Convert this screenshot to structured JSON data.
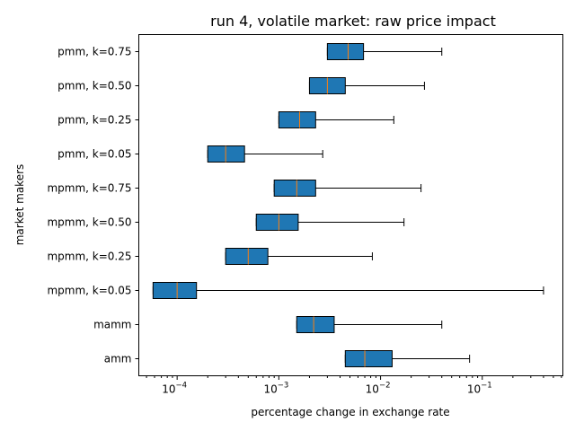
{
  "chart_data": {
    "type": "box",
    "title": "run 4, volatile market: raw price impact",
    "xlabel": "percentage change in exchange rate",
    "ylabel": "market makers",
    "xscale": "log",
    "xlim": [
      4.2e-05,
      0.62
    ],
    "xticks": [
      {
        "value": 0.0001,
        "base": "10",
        "exp": "−4"
      },
      {
        "value": 0.001,
        "base": "10",
        "exp": "−3"
      },
      {
        "value": 0.01,
        "base": "10",
        "exp": "−2"
      },
      {
        "value": 0.1,
        "base": "10",
        "exp": "−1"
      }
    ],
    "grid": false,
    "legend": "none",
    "box_color": "#1f77b4",
    "median_color": "#ff7f0e",
    "series": [
      {
        "name": "pmm, k=0.75",
        "whislo": 0.003,
        "q1": 0.003,
        "median": 0.0048,
        "q3": 0.0068,
        "whishi": 0.04
      },
      {
        "name": "pmm, k=0.50",
        "whislo": 0.002,
        "q1": 0.002,
        "median": 0.003,
        "q3": 0.0045,
        "whishi": 0.027
      },
      {
        "name": "pmm, k=0.25",
        "whislo": 0.001,
        "q1": 0.001,
        "median": 0.0016,
        "q3": 0.0023,
        "whishi": 0.0135
      },
      {
        "name": "pmm, k=0.05",
        "whislo": 0.0002,
        "q1": 0.0002,
        "median": 0.0003,
        "q3": 0.00046,
        "whishi": 0.0027
      },
      {
        "name": "mpmm, k=0.75",
        "whislo": 0.0009,
        "q1": 0.0009,
        "median": 0.0015,
        "q3": 0.0023,
        "whishi": 0.025
      },
      {
        "name": "mpmm, k=0.50",
        "whislo": 0.0006,
        "q1": 0.0006,
        "median": 0.001,
        "q3": 0.00155,
        "whishi": 0.017
      },
      {
        "name": "mpmm, k=0.25",
        "whislo": 0.0003,
        "q1": 0.0003,
        "median": 0.0005,
        "q3": 0.00078,
        "whishi": 0.0083
      },
      {
        "name": "mpmm, k=0.05",
        "whislo": 5.8e-05,
        "q1": 5.8e-05,
        "median": 0.0001,
        "q3": 0.000155,
        "whishi": 0.4
      },
      {
        "name": "mamm",
        "whislo": 0.0015,
        "q1": 0.0015,
        "median": 0.0022,
        "q3": 0.0035,
        "whishi": 0.04
      },
      {
        "name": "amm",
        "whislo": 0.0045,
        "q1": 0.0045,
        "median": 0.007,
        "q3": 0.013,
        "whishi": 0.075
      }
    ]
  }
}
